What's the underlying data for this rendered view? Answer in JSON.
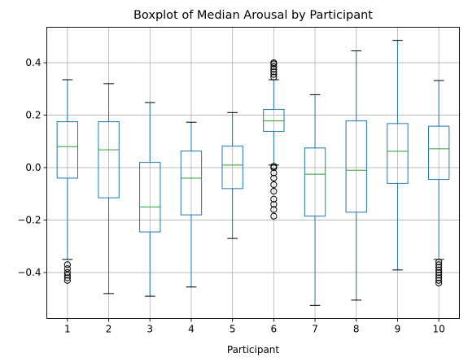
{
  "chart_data": {
    "type": "box",
    "title": "Boxplot of Median Arousal by Participant",
    "xlabel": "Participant",
    "ylabel": "",
    "ylim": [
      -0.575,
      0.535
    ],
    "yticks": [
      -0.4,
      -0.2,
      0.0,
      0.2,
      0.4
    ],
    "ytick_labels": [
      "−0.4",
      "−0.2",
      "0.0",
      "0.2",
      "0.4"
    ],
    "grid": true,
    "categories": [
      "1",
      "2",
      "3",
      "4",
      "5",
      "6",
      "7",
      "8",
      "9",
      "10"
    ],
    "boxes": [
      {
        "whisker_low": -0.35,
        "q1": -0.04,
        "median": 0.08,
        "q3": 0.175,
        "whisker_high": 0.335,
        "outliers": [
          -0.37,
          -0.385,
          -0.4,
          -0.41,
          -0.42,
          -0.43
        ]
      },
      {
        "whisker_low": -0.48,
        "q1": -0.115,
        "median": 0.068,
        "q3": 0.175,
        "whisker_high": 0.32,
        "outliers": []
      },
      {
        "whisker_low": -0.49,
        "q1": -0.245,
        "median": -0.15,
        "q3": 0.02,
        "whisker_high": 0.248,
        "outliers": []
      },
      {
        "whisker_low": -0.455,
        "q1": -0.18,
        "median": -0.04,
        "q3": 0.063,
        "whisker_high": 0.173,
        "outliers": []
      },
      {
        "whisker_low": -0.27,
        "q1": -0.08,
        "median": 0.01,
        "q3": 0.082,
        "whisker_high": 0.21,
        "outliers": []
      },
      {
        "whisker_low": 0.01,
        "q1": 0.138,
        "median": 0.178,
        "q3": 0.222,
        "whisker_high": 0.335,
        "outliers": [
          -0.185,
          -0.16,
          -0.14,
          -0.12,
          -0.09,
          -0.065,
          -0.04,
          -0.02,
          0.0,
          0.005,
          0.345,
          0.355,
          0.365,
          0.375,
          0.385,
          0.395,
          0.4
        ]
      },
      {
        "whisker_low": -0.525,
        "q1": -0.185,
        "median": -0.025,
        "q3": 0.075,
        "whisker_high": 0.278,
        "outliers": []
      },
      {
        "whisker_low": -0.505,
        "q1": -0.17,
        "median": -0.01,
        "q3": 0.178,
        "whisker_high": 0.445,
        "outliers": []
      },
      {
        "whisker_low": -0.39,
        "q1": -0.06,
        "median": 0.062,
        "q3": 0.168,
        "whisker_high": 0.485,
        "outliers": []
      },
      {
        "whisker_low": -0.35,
        "q1": -0.045,
        "median": 0.072,
        "q3": 0.158,
        "whisker_high": 0.332,
        "outliers": [
          -0.36,
          -0.37,
          -0.38,
          -0.39,
          -0.4,
          -0.41,
          -0.42,
          -0.43,
          -0.44
        ]
      }
    ],
    "colors": {
      "box": "#1f77b4",
      "median": "#2ca02c",
      "cap": "#000000",
      "grid": "#b0b0b0",
      "outlier": "#000000"
    }
  }
}
